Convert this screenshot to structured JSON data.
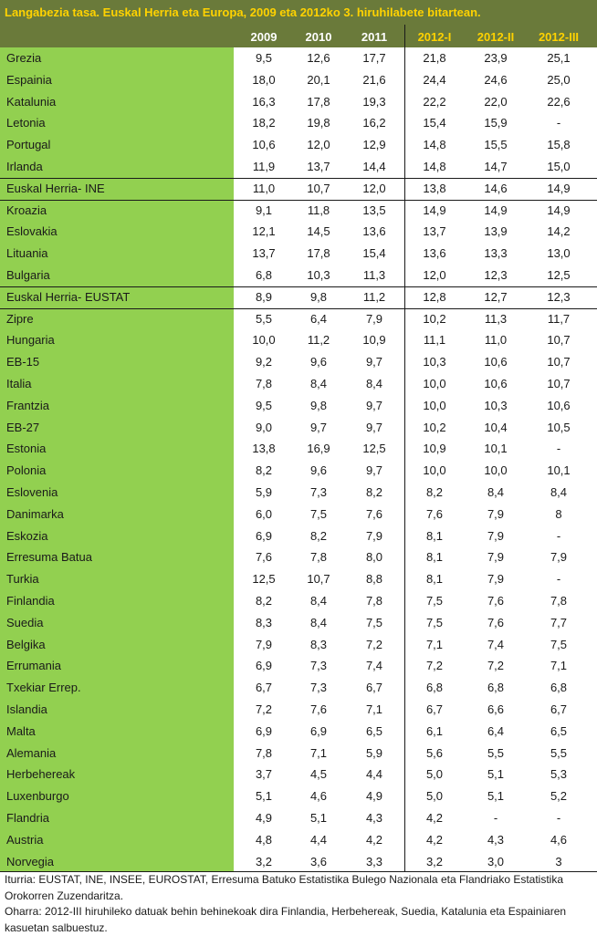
{
  "title": "Langabezia tasa. Euskal Herria eta Europa, 2009 eta 2012ko 3. hiruhilabete bitartean.",
  "colors": {
    "header_bg": "#6a7a3a",
    "title_text": "#ffd200",
    "name_column_bg": "#92d050"
  },
  "chart_data": {
    "type": "table",
    "title": "Langabezia tasa. Euskal Herria eta Europa, 2009 eta 2012ko 3. hiruhilabete bitartean.",
    "columns": [
      "2009",
      "2010",
      "2011",
      "2012-I",
      "2012-II",
      "2012-III"
    ],
    "rows": [
      {
        "name": "Grezia",
        "values": [
          "9,5",
          "12,6",
          "17,7",
          "21,8",
          "23,9",
          "25,1"
        ]
      },
      {
        "name": "Espainia",
        "values": [
          "18,0",
          "20,1",
          "21,6",
          "24,4",
          "24,6",
          "25,0"
        ]
      },
      {
        "name": "Katalunia",
        "values": [
          "16,3",
          "17,8",
          "19,3",
          "22,2",
          "22,0",
          "22,6"
        ]
      },
      {
        "name": "Letonia",
        "values": [
          "18,2",
          "19,8",
          "16,2",
          "15,4",
          "15,9",
          "-"
        ]
      },
      {
        "name": "Portugal",
        "values": [
          "10,6",
          "12,0",
          "12,9",
          "14,8",
          "15,5",
          "15,8"
        ]
      },
      {
        "name": "Irlanda",
        "values": [
          "11,9",
          "13,7",
          "14,4",
          "14,8",
          "14,7",
          "15,0"
        ]
      },
      {
        "name": "Euskal Herria- INE",
        "values": [
          "11,0",
          "10,7",
          "12,0",
          "13,8",
          "14,6",
          "14,9"
        ],
        "highlight": true
      },
      {
        "name": "Kroazia",
        "values": [
          "9,1",
          "11,8",
          "13,5",
          "14,9",
          "14,9",
          "14,9"
        ]
      },
      {
        "name": "Eslovakia",
        "values": [
          "12,1",
          "14,5",
          "13,6",
          "13,7",
          "13,9",
          "14,2"
        ]
      },
      {
        "name": "Lituania",
        "values": [
          "13,7",
          "17,8",
          "15,4",
          "13,6",
          "13,3",
          "13,0"
        ]
      },
      {
        "name": "Bulgaria",
        "values": [
          "6,8",
          "10,3",
          "11,3",
          "12,0",
          "12,3",
          "12,5"
        ]
      },
      {
        "name": "Euskal Herria- EUSTAT",
        "values": [
          "8,9",
          "9,8",
          "11,2",
          "12,8",
          "12,7",
          "12,3"
        ],
        "highlight": true
      },
      {
        "name": "Zipre",
        "values": [
          "5,5",
          "6,4",
          "7,9",
          "10,2",
          "11,3",
          "11,7"
        ]
      },
      {
        "name": "Hungaria",
        "values": [
          "10,0",
          "11,2",
          "10,9",
          "11,1",
          "11,0",
          "10,7"
        ]
      },
      {
        "name": "EB-15",
        "values": [
          "9,2",
          "9,6",
          "9,7",
          "10,3",
          "10,6",
          "10,7"
        ]
      },
      {
        "name": "Italia",
        "values": [
          "7,8",
          "8,4",
          "8,4",
          "10,0",
          "10,6",
          "10,7"
        ]
      },
      {
        "name": "Frantzia",
        "values": [
          "9,5",
          "9,8",
          "9,7",
          "10,0",
          "10,3",
          "10,6"
        ]
      },
      {
        "name": "EB-27",
        "values": [
          "9,0",
          "9,7",
          "9,7",
          "10,2",
          "10,4",
          "10,5"
        ]
      },
      {
        "name": "Estonia",
        "values": [
          "13,8",
          "16,9",
          "12,5",
          "10,9",
          "10,1",
          "-"
        ]
      },
      {
        "name": "Polonia",
        "values": [
          "8,2",
          "9,6",
          "9,7",
          "10,0",
          "10,0",
          "10,1"
        ]
      },
      {
        "name": "Eslovenia",
        "values": [
          "5,9",
          "7,3",
          "8,2",
          "8,2",
          "8,4",
          "8,4"
        ]
      },
      {
        "name": "Danimarka",
        "values": [
          "6,0",
          "7,5",
          "7,6",
          "7,6",
          "7,9",
          "8"
        ]
      },
      {
        "name": "Eskozia",
        "values": [
          "6,9",
          "8,2",
          "7,9",
          "8,1",
          "7,9",
          "-"
        ]
      },
      {
        "name": "Erresuma Batua",
        "values": [
          "7,6",
          "7,8",
          "8,0",
          "8,1",
          "7,9",
          "7,9"
        ]
      },
      {
        "name": "Turkia",
        "values": [
          "12,5",
          "10,7",
          "8,8",
          "8,1",
          "7,9",
          "-"
        ]
      },
      {
        "name": "Finlandia",
        "values": [
          "8,2",
          "8,4",
          "7,8",
          "7,5",
          "7,6",
          "7,8"
        ]
      },
      {
        "name": "Suedia",
        "values": [
          "8,3",
          "8,4",
          "7,5",
          "7,5",
          "7,6",
          "7,7"
        ]
      },
      {
        "name": "Belgika",
        "values": [
          "7,9",
          "8,3",
          "7,2",
          "7,1",
          "7,4",
          "7,5"
        ]
      },
      {
        "name": "Errumania",
        "values": [
          "6,9",
          "7,3",
          "7,4",
          "7,2",
          "7,2",
          "7,1"
        ]
      },
      {
        "name": "Txekiar Errep.",
        "values": [
          "6,7",
          "7,3",
          "6,7",
          "6,8",
          "6,8",
          "6,8"
        ]
      },
      {
        "name": "Islandia",
        "values": [
          "7,2",
          "7,6",
          "7,1",
          "6,7",
          "6,6",
          "6,7"
        ]
      },
      {
        "name": "Malta",
        "values": [
          "6,9",
          "6,9",
          "6,5",
          "6,1",
          "6,4",
          "6,5"
        ]
      },
      {
        "name": "Alemania",
        "values": [
          "7,8",
          "7,1",
          "5,9",
          "5,6",
          "5,5",
          "5,5"
        ]
      },
      {
        "name": "Herbehereak",
        "values": [
          "3,7",
          "4,5",
          "4,4",
          "5,0",
          "5,1",
          "5,3"
        ]
      },
      {
        "name": "Luxenburgo",
        "values": [
          "5,1",
          "4,6",
          "4,9",
          "5,0",
          "5,1",
          "5,2"
        ]
      },
      {
        "name": "Flandria",
        "values": [
          "4,9",
          "5,1",
          "4,3",
          "4,2",
          "-",
          "-"
        ]
      },
      {
        "name": "Austria",
        "values": [
          "4,8",
          "4,4",
          "4,2",
          "4,2",
          "4,3",
          "4,6"
        ]
      },
      {
        "name": "Norvegia",
        "values": [
          "3,2",
          "3,6",
          "3,3",
          "3,2",
          "3,0",
          "3"
        ]
      }
    ]
  },
  "footnotes": [
    "Iturria: EUSTAT, INE, INSEE, EUROSTAT, Erresuma Batuko Estatistika Bulego Nazionala eta Flandriako Estatistika Orokorren Zuzendaritza.",
    "Oharra: 2012-III hiruhileko datuak behin behinekoak dira Finlandia, Herbehereak, Suedia, Katalunia eta Espainiaren kasuetan salbuestuz."
  ]
}
